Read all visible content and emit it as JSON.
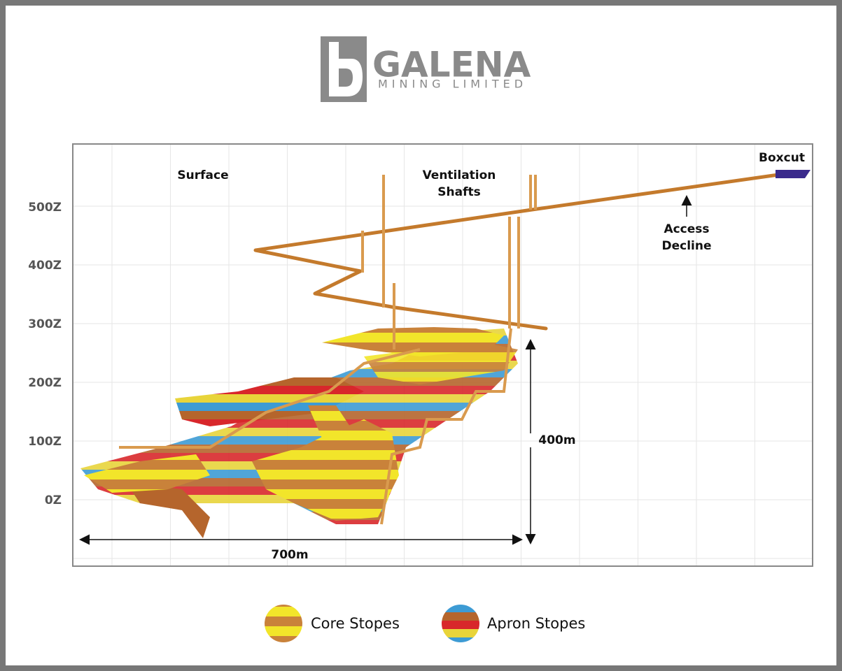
{
  "logo": {
    "name": "GALENA",
    "tagline": "MINING LIMITED"
  },
  "axis": {
    "labels": [
      "500Z",
      "400Z",
      "300Z",
      "200Z",
      "100Z",
      "0Z"
    ]
  },
  "annotations": {
    "surface": "Surface",
    "ventilation": [
      "Ventilation",
      "Shafts"
    ],
    "boxcut": "Boxcut",
    "access": [
      "Access",
      "Decline"
    ],
    "height": "400m",
    "width": "700m"
  },
  "legend": [
    "Core Stopes",
    "Apron Stopes"
  ]
}
